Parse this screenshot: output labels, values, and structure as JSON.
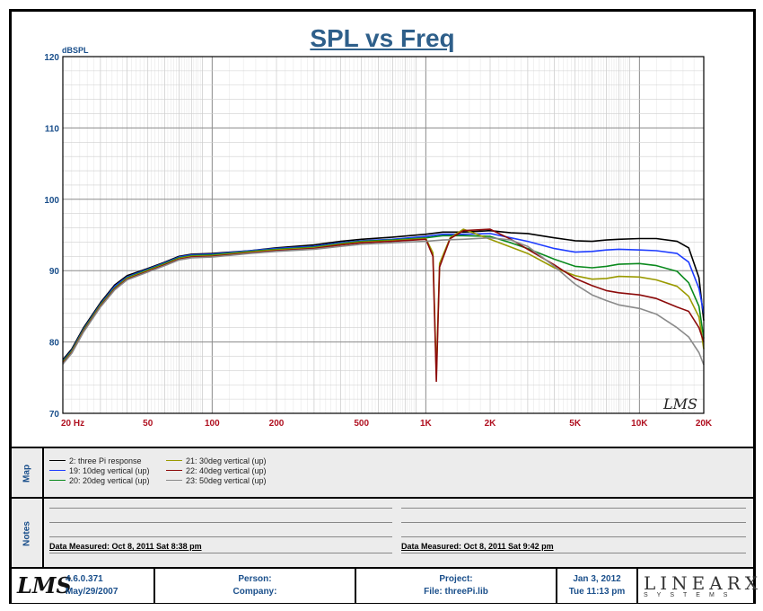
{
  "chart_data": {
    "type": "line",
    "title": "SPL vs Freq",
    "ylabel": "dBSPL",
    "xlabel": "",
    "x_scale": "log",
    "xlim": [
      20,
      20000
    ],
    "ylim": [
      70,
      120
    ],
    "y_ticks": [
      "120",
      "110",
      "100",
      "90",
      "80",
      "70"
    ],
    "x_ticks": [
      {
        "label": "20  Hz",
        "value": 20
      },
      {
        "label": "50",
        "value": 50
      },
      {
        "label": "100",
        "value": 100
      },
      {
        "label": "200",
        "value": 200
      },
      {
        "label": "500",
        "value": 500
      },
      {
        "label": "1K",
        "value": 1000
      },
      {
        "label": "2K",
        "value": 2000
      },
      {
        "label": "5K",
        "value": 5000
      },
      {
        "label": "10K",
        "value": 10000
      },
      {
        "label": "20K",
        "value": 20000
      }
    ],
    "grid": true,
    "series": [
      {
        "name": "2: three Pi response",
        "color": "#000000",
        "points": [
          [
            20,
            77.5
          ],
          [
            22,
            79
          ],
          [
            25,
            82
          ],
          [
            30,
            85.5
          ],
          [
            35,
            88
          ],
          [
            40,
            89.3
          ],
          [
            50,
            90.3
          ],
          [
            60,
            91.2
          ],
          [
            70,
            92
          ],
          [
            80,
            92.3
          ],
          [
            100,
            92.4
          ],
          [
            150,
            92.8
          ],
          [
            200,
            93.2
          ],
          [
            300,
            93.6
          ],
          [
            400,
            94.1
          ],
          [
            500,
            94.4
          ],
          [
            700,
            94.7
          ],
          [
            1000,
            95.1
          ],
          [
            1200,
            95.4
          ],
          [
            1500,
            95.4
          ],
          [
            2000,
            95.6
          ],
          [
            2500,
            95.3
          ],
          [
            3000,
            95.2
          ],
          [
            4000,
            94.6
          ],
          [
            5000,
            94.2
          ],
          [
            6000,
            94.1
          ],
          [
            7000,
            94.3
          ],
          [
            8000,
            94.4
          ],
          [
            10000,
            94.5
          ],
          [
            12000,
            94.5
          ],
          [
            15000,
            94.1
          ],
          [
            17000,
            93.2
          ],
          [
            19000,
            89
          ],
          [
            20000,
            83
          ]
        ]
      },
      {
        "name": "19: 10deg vertical (up)",
        "color": "#1e3cff",
        "points": [
          [
            20,
            77.3
          ],
          [
            22,
            78.8
          ],
          [
            25,
            81.8
          ],
          [
            30,
            85.3
          ],
          [
            35,
            87.8
          ],
          [
            40,
            89.1
          ],
          [
            50,
            90.2
          ],
          [
            60,
            91.1
          ],
          [
            70,
            91.9
          ],
          [
            80,
            92.2
          ],
          [
            100,
            92.3
          ],
          [
            150,
            92.8
          ],
          [
            200,
            93.1
          ],
          [
            300,
            93.4
          ],
          [
            400,
            93.9
          ],
          [
            500,
            94.2
          ],
          [
            700,
            94.4
          ],
          [
            1000,
            94.8
          ],
          [
            1200,
            95.1
          ],
          [
            1500,
            95.1
          ],
          [
            2000,
            95.2
          ],
          [
            2500,
            94.6
          ],
          [
            3000,
            94.1
          ],
          [
            4000,
            93.1
          ],
          [
            5000,
            92.6
          ],
          [
            6000,
            92.7
          ],
          [
            7000,
            92.9
          ],
          [
            8000,
            93
          ],
          [
            10000,
            92.9
          ],
          [
            12000,
            92.8
          ],
          [
            15000,
            92.4
          ],
          [
            17000,
            91.2
          ],
          [
            19000,
            87.5
          ],
          [
            20000,
            84
          ]
        ]
      },
      {
        "name": "20: 20deg vertical (up)",
        "color": "#0b8a1e",
        "points": [
          [
            20,
            77.2
          ],
          [
            22,
            78.7
          ],
          [
            25,
            81.7
          ],
          [
            30,
            85.2
          ],
          [
            35,
            87.6
          ],
          [
            40,
            89
          ],
          [
            50,
            90.1
          ],
          [
            60,
            91
          ],
          [
            70,
            91.8
          ],
          [
            80,
            92.1
          ],
          [
            100,
            92.2
          ],
          [
            150,
            92.7
          ],
          [
            200,
            93
          ],
          [
            300,
            93.3
          ],
          [
            400,
            93.8
          ],
          [
            500,
            94.1
          ],
          [
            700,
            94.3
          ],
          [
            1000,
            94.6
          ],
          [
            1200,
            94.9
          ],
          [
            1500,
            94.9
          ],
          [
            2000,
            94.8
          ],
          [
            2500,
            93.9
          ],
          [
            3000,
            93.1
          ],
          [
            4000,
            91.6
          ],
          [
            5000,
            90.6
          ],
          [
            6000,
            90.4
          ],
          [
            7000,
            90.6
          ],
          [
            8000,
            90.9
          ],
          [
            10000,
            91
          ],
          [
            12000,
            90.7
          ],
          [
            15000,
            89.9
          ],
          [
            17000,
            88.3
          ],
          [
            19000,
            85
          ],
          [
            20000,
            80.5
          ]
        ]
      },
      {
        "name": "21: 30deg vertical (up)",
        "color": "#9a9a00",
        "points": [
          [
            20,
            77.1
          ],
          [
            22,
            78.6
          ],
          [
            25,
            81.6
          ],
          [
            30,
            85.1
          ],
          [
            35,
            87.5
          ],
          [
            40,
            88.9
          ],
          [
            50,
            90
          ],
          [
            60,
            90.9
          ],
          [
            70,
            91.7
          ],
          [
            80,
            92
          ],
          [
            100,
            92.1
          ],
          [
            150,
            92.6
          ],
          [
            200,
            92.9
          ],
          [
            300,
            93.2
          ],
          [
            400,
            93.7
          ],
          [
            500,
            94
          ],
          [
            700,
            94.2
          ],
          [
            1000,
            94.5
          ],
          [
            1080,
            92.5
          ],
          [
            1120,
            75.5
          ],
          [
            1160,
            91
          ],
          [
            1300,
            94.6
          ],
          [
            1500,
            95.8
          ],
          [
            2000,
            94.4
          ],
          [
            2500,
            93.3
          ],
          [
            3000,
            92.4
          ],
          [
            4000,
            90.4
          ],
          [
            5000,
            89.3
          ],
          [
            6000,
            88.8
          ],
          [
            7000,
            88.9
          ],
          [
            8000,
            89.2
          ],
          [
            10000,
            89.1
          ],
          [
            12000,
            88.7
          ],
          [
            15000,
            87.8
          ],
          [
            17000,
            86.4
          ],
          [
            19000,
            83.5
          ],
          [
            20000,
            79
          ]
        ]
      },
      {
        "name": "22: 40deg vertical (up)",
        "color": "#8c0a0a",
        "points": [
          [
            20,
            77
          ],
          [
            22,
            78.5
          ],
          [
            25,
            81.5
          ],
          [
            30,
            85
          ],
          [
            35,
            87.4
          ],
          [
            40,
            88.8
          ],
          [
            50,
            89.9
          ],
          [
            60,
            90.8
          ],
          [
            70,
            91.6
          ],
          [
            80,
            91.9
          ],
          [
            100,
            92
          ],
          [
            150,
            92.5
          ],
          [
            200,
            92.8
          ],
          [
            300,
            93.1
          ],
          [
            400,
            93.6
          ],
          [
            500,
            93.9
          ],
          [
            700,
            94.1
          ],
          [
            1000,
            94.4
          ],
          [
            1080,
            92
          ],
          [
            1120,
            74.5
          ],
          [
            1160,
            90.5
          ],
          [
            1300,
            94.5
          ],
          [
            1500,
            95.6
          ],
          [
            2000,
            95.8
          ],
          [
            2500,
            94.4
          ],
          [
            3000,
            93
          ],
          [
            4000,
            90.8
          ],
          [
            5000,
            88.9
          ],
          [
            6000,
            87.9
          ],
          [
            7000,
            87.2
          ],
          [
            8000,
            86.9
          ],
          [
            10000,
            86.6
          ],
          [
            12000,
            86.1
          ],
          [
            15000,
            84.9
          ],
          [
            17000,
            84.3
          ],
          [
            19000,
            82
          ],
          [
            20000,
            80
          ]
        ]
      },
      {
        "name": "23: 50deg vertical (up)",
        "color": "#8a8a8a",
        "points": [
          [
            20,
            76.9
          ],
          [
            22,
            78.4
          ],
          [
            25,
            81.4
          ],
          [
            30,
            84.9
          ],
          [
            35,
            87.3
          ],
          [
            40,
            88.7
          ],
          [
            50,
            89.8
          ],
          [
            60,
            90.7
          ],
          [
            70,
            91.5
          ],
          [
            80,
            91.8
          ],
          [
            100,
            91.9
          ],
          [
            150,
            92.4
          ],
          [
            200,
            92.7
          ],
          [
            300,
            93
          ],
          [
            400,
            93.4
          ],
          [
            500,
            93.7
          ],
          [
            700,
            93.9
          ],
          [
            1000,
            94.1
          ],
          [
            1200,
            94.3
          ],
          [
            1500,
            94.4
          ],
          [
            2000,
            94.6
          ],
          [
            2500,
            94.3
          ],
          [
            3000,
            93.4
          ],
          [
            4000,
            90.6
          ],
          [
            5000,
            88.1
          ],
          [
            6000,
            86.6
          ],
          [
            7000,
            85.8
          ],
          [
            8000,
            85.2
          ],
          [
            10000,
            84.7
          ],
          [
            12000,
            83.9
          ],
          [
            15000,
            82
          ],
          [
            17000,
            80.7
          ],
          [
            19000,
            78.5
          ],
          [
            20000,
            76.8
          ]
        ]
      }
    ]
  },
  "map": {
    "label": "Map",
    "legend": [
      {
        "text": "2: three Pi response",
        "color": "#000000"
      },
      {
        "text": "19: 10deg vertical (up)",
        "color": "#1e3cff"
      },
      {
        "text": "20: 20deg vertical (up)",
        "color": "#0b8a1e"
      },
      {
        "text": "21: 30deg vertical (up)",
        "color": "#9a9a00"
      },
      {
        "text": "22: 40deg vertical (up)",
        "color": "#8c0a0a"
      },
      {
        "text": "23: 50deg vertical (up)",
        "color": "#8a8a8a"
      }
    ]
  },
  "notes": {
    "label": "Notes",
    "left_measured": "Data Measured: Oct  8, 2011  Sat  8:38 pm",
    "right_measured": "Data Measured: Oct  8, 2011  Sat  9:42 pm"
  },
  "footer": {
    "logo": "LMS",
    "version": "4.6.0.371",
    "version_date": "May/29/2007",
    "person": "Person:",
    "company": "Company:",
    "project": "Project:",
    "file": "File: threePi.lib",
    "date": "Jan  3, 2012",
    "time": "Tue 11:13 pm",
    "brand": "LINEARX",
    "brand_sub": "SYSTEMS"
  },
  "watermark": "LMS"
}
